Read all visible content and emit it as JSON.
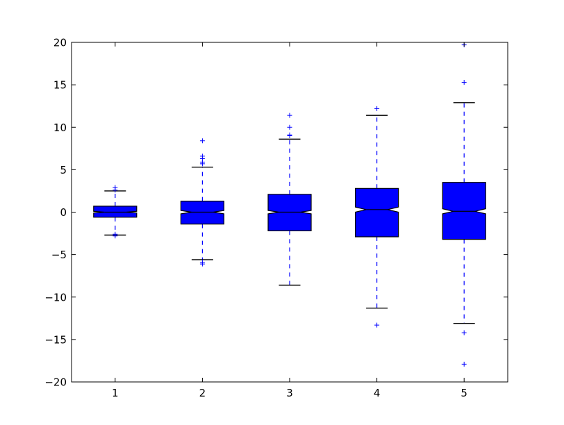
{
  "chart_data": {
    "type": "boxplot",
    "notched": true,
    "categories": [
      "1",
      "2",
      "3",
      "4",
      "5"
    ],
    "ylim": [
      -20,
      20
    ],
    "yticks": [
      -20,
      -15,
      -10,
      -5,
      0,
      5,
      10,
      15,
      20
    ],
    "ytick_labels": [
      "−20",
      "−15",
      "−10",
      "−5",
      "0",
      "5",
      "10",
      "15",
      "20"
    ],
    "grid": false,
    "colors": {
      "box_fill": "#0000ff",
      "box_edge": "#000000",
      "whisker": "#0000ff",
      "cap": "#000000",
      "flier": "#0000ff"
    },
    "boxes": [
      {
        "label": "1",
        "q1": -0.6,
        "median": 0.0,
        "q3": 0.7,
        "notch_low": -0.1,
        "notch_high": 0.1,
        "whisker_low": -2.7,
        "whisker_high": 2.5,
        "fliers": [
          2.9,
          2.6,
          -2.6,
          -2.8
        ]
      },
      {
        "label": "2",
        "q1": -1.4,
        "median": 0.0,
        "q3": 1.3,
        "notch_low": -0.2,
        "notch_high": 0.2,
        "whisker_low": -5.6,
        "whisker_high": 5.3,
        "fliers": [
          8.4,
          6.6,
          6.3,
          5.9,
          5.7,
          -5.9,
          -6.1
        ]
      },
      {
        "label": "3",
        "q1": -2.2,
        "median": 0.0,
        "q3": 2.1,
        "notch_low": -0.2,
        "notch_high": 0.2,
        "whisker_low": -8.6,
        "whisker_high": 8.6,
        "fliers": [
          11.4,
          10.0,
          9.1,
          9.0
        ]
      },
      {
        "label": "4",
        "q1": -2.9,
        "median": 0.3,
        "q3": 2.8,
        "notch_low": 0.0,
        "notch_high": 0.6,
        "whisker_low": -11.3,
        "whisker_high": 11.4,
        "fliers": [
          12.2,
          -13.3
        ]
      },
      {
        "label": "5",
        "q1": -3.2,
        "median": 0.1,
        "q3": 3.5,
        "notch_low": -0.2,
        "notch_high": 0.4,
        "whisker_low": -13.1,
        "whisker_high": 12.9,
        "fliers": [
          19.7,
          15.3,
          -14.2,
          -17.9
        ]
      }
    ]
  }
}
